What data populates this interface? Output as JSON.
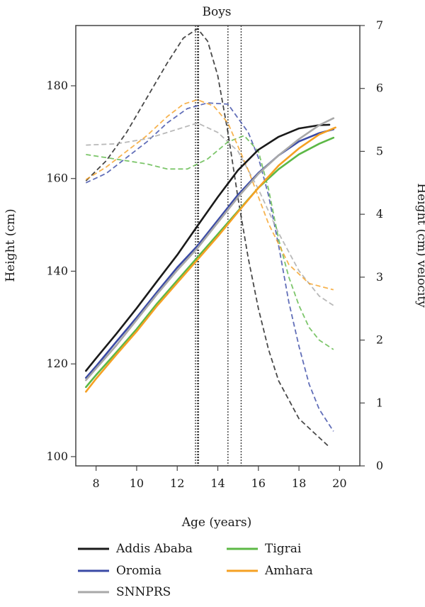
{
  "chart_data": {
    "type": "line",
    "title": "Boys",
    "xlabel": "Age (years)",
    "ylabel": "Height (cm)",
    "y2label": "Height (cm) velocity",
    "xlim": [
      7,
      21
    ],
    "ylim": [
      98,
      193
    ],
    "y2lim": [
      0,
      7
    ],
    "x_ticks": [
      8,
      10,
      12,
      14,
      16,
      18,
      20
    ],
    "y_ticks": [
      100,
      120,
      140,
      160,
      180
    ],
    "y2_ticks": [
      0,
      1,
      2,
      3,
      4,
      5,
      6,
      7
    ],
    "grid": false,
    "vlines": [
      12.9,
      13.0,
      13.05,
      14.5,
      15.15
    ],
    "series": [
      {
        "name": "Addis Ababa",
        "color": "#1a1a1a",
        "height": [
          [
            7.5,
            118.5
          ],
          [
            8,
            121.2
          ],
          [
            9,
            126.5
          ],
          [
            10,
            132.0
          ],
          [
            11,
            137.8
          ],
          [
            12,
            143.5
          ],
          [
            13,
            149.8
          ],
          [
            14,
            156.0
          ],
          [
            15,
            161.8
          ],
          [
            16,
            166.2
          ],
          [
            17,
            169.0
          ],
          [
            18,
            170.8
          ],
          [
            19,
            171.5
          ],
          [
            19.5,
            171.6
          ]
        ],
        "velocity": [
          [
            7.5,
            4.53
          ],
          [
            8.5,
            4.85
          ],
          [
            9.5,
            5.3
          ],
          [
            10.5,
            5.85
          ],
          [
            11.5,
            6.4
          ],
          [
            12.3,
            6.8
          ],
          [
            13,
            6.95
          ],
          [
            13.5,
            6.75
          ],
          [
            14,
            6.2
          ],
          [
            14.5,
            5.3
          ],
          [
            15,
            4.25
          ],
          [
            15.5,
            3.3
          ],
          [
            16,
            2.5
          ],
          [
            16.5,
            1.85
          ],
          [
            17,
            1.35
          ],
          [
            18,
            0.75
          ],
          [
            19,
            0.45
          ],
          [
            19.5,
            0.3
          ]
        ]
      },
      {
        "name": "Oromia",
        "color": "#3a4aa6",
        "height": [
          [
            7.5,
            117.0
          ],
          [
            8,
            119.5
          ],
          [
            9,
            124.8
          ],
          [
            10,
            130.0
          ],
          [
            11,
            135.5
          ],
          [
            12,
            140.8
          ],
          [
            13,
            145.5
          ],
          [
            14,
            151.0
          ],
          [
            15,
            156.5
          ],
          [
            16,
            161.2
          ],
          [
            17,
            165.0
          ],
          [
            18,
            168.0
          ],
          [
            19,
            169.8
          ],
          [
            19.7,
            170.6
          ]
        ],
        "velocity": [
          [
            7.5,
            4.5
          ],
          [
            8.5,
            4.65
          ],
          [
            9.5,
            4.9
          ],
          [
            10.5,
            5.15
          ],
          [
            11.5,
            5.45
          ],
          [
            12.5,
            5.68
          ],
          [
            13.5,
            5.77
          ],
          [
            14.5,
            5.75
          ],
          [
            15.5,
            5.3
          ],
          [
            16,
            4.9
          ],
          [
            16.5,
            4.3
          ],
          [
            17,
            3.5
          ],
          [
            17.5,
            2.6
          ],
          [
            18,
            1.9
          ],
          [
            18.5,
            1.3
          ],
          [
            19,
            0.9
          ],
          [
            19.7,
            0.55
          ]
        ]
      },
      {
        "name": "SNNPRS",
        "color": "#a8a8a8",
        "height": [
          [
            7.5,
            116.5
          ],
          [
            8,
            119.0
          ],
          [
            9,
            124.0
          ],
          [
            10,
            129.5
          ],
          [
            11,
            135.0
          ],
          [
            12,
            140.2
          ],
          [
            13,
            145.0
          ],
          [
            14,
            150.5
          ],
          [
            15,
            156.0
          ],
          [
            16,
            161.0
          ],
          [
            17,
            165.0
          ],
          [
            18,
            168.5
          ],
          [
            19,
            171.5
          ],
          [
            19.7,
            173.0
          ]
        ],
        "velocity": [
          [
            7.5,
            5.1
          ],
          [
            9,
            5.12
          ],
          [
            10.5,
            5.2
          ],
          [
            12,
            5.35
          ],
          [
            13,
            5.45
          ],
          [
            14,
            5.3
          ],
          [
            15,
            5.0
          ],
          [
            16,
            4.4
          ],
          [
            17,
            3.7
          ],
          [
            18,
            3.1
          ],
          [
            19,
            2.7
          ],
          [
            19.7,
            2.55
          ]
        ]
      },
      {
        "name": "Tigrai",
        "color": "#5cb846",
        "height": [
          [
            7.5,
            115.0
          ],
          [
            8,
            117.6
          ],
          [
            9,
            122.5
          ],
          [
            10,
            127.5
          ],
          [
            11,
            133.0
          ],
          [
            12,
            138.0
          ],
          [
            13,
            143.0
          ],
          [
            14,
            148.0
          ],
          [
            15,
            153.0
          ],
          [
            16,
            158.0
          ],
          [
            17,
            162.0
          ],
          [
            18,
            165.2
          ],
          [
            19,
            167.5
          ],
          [
            19.7,
            168.8
          ]
        ],
        "velocity": [
          [
            7.5,
            4.95
          ],
          [
            8.5,
            4.9
          ],
          [
            9.5,
            4.85
          ],
          [
            10.5,
            4.8
          ],
          [
            11.5,
            4.72
          ],
          [
            12.5,
            4.72
          ],
          [
            13.5,
            4.88
          ],
          [
            14.5,
            5.15
          ],
          [
            15.3,
            5.25
          ],
          [
            16,
            5.0
          ],
          [
            16.5,
            4.4
          ],
          [
            17,
            3.6
          ],
          [
            17.5,
            3.0
          ],
          [
            18,
            2.55
          ],
          [
            18.5,
            2.2
          ],
          [
            19,
            2.0
          ],
          [
            19.7,
            1.85
          ]
        ]
      },
      {
        "name": "Amhara",
        "color": "#f5a023",
        "height": [
          [
            7.5,
            114.0
          ],
          [
            8,
            116.8
          ],
          [
            9,
            122.0
          ],
          [
            10,
            127.0
          ],
          [
            11,
            132.5
          ],
          [
            12,
            137.5
          ],
          [
            13,
            142.5
          ],
          [
            14,
            147.5
          ],
          [
            15,
            152.8
          ],
          [
            16,
            158.0
          ],
          [
            17,
            162.8
          ],
          [
            18,
            166.5
          ],
          [
            19,
            169.5
          ],
          [
            19.8,
            171.0
          ]
        ],
        "velocity": [
          [
            7.5,
            4.55
          ],
          [
            8.5,
            4.75
          ],
          [
            9.5,
            5.0
          ],
          [
            10.5,
            5.25
          ],
          [
            11.5,
            5.55
          ],
          [
            12.3,
            5.75
          ],
          [
            13,
            5.82
          ],
          [
            13.8,
            5.72
          ],
          [
            14.5,
            5.45
          ],
          [
            15.5,
            4.7
          ],
          [
            16.5,
            3.85
          ],
          [
            17.5,
            3.2
          ],
          [
            18.5,
            2.9
          ],
          [
            19.7,
            2.8
          ]
        ]
      }
    ],
    "legend": {
      "placement": "bottom",
      "entries": [
        "Addis Ababa",
        "Tigrai",
        "Oromia",
        "Amhara",
        "SNNPRS"
      ]
    }
  }
}
